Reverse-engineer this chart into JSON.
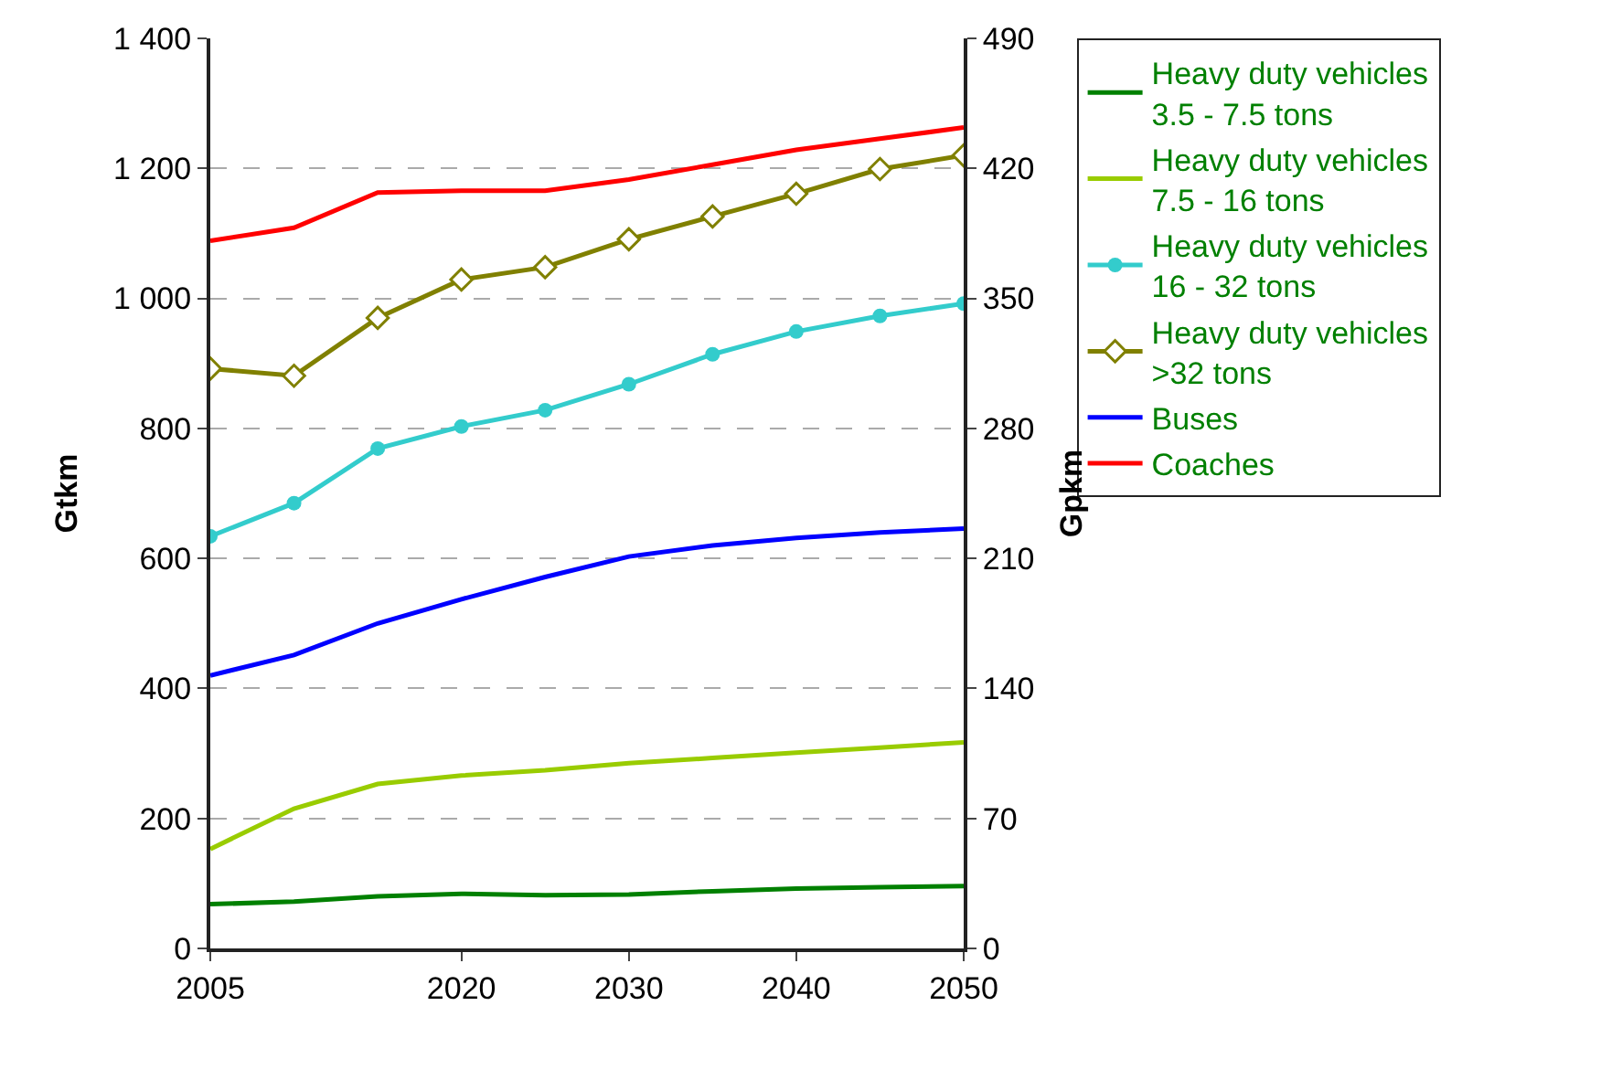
{
  "chart_data": {
    "type": "line",
    "xlabel": null,
    "ylabel": "Gtkm",
    "y2label": "Gpkm",
    "x": [
      2005,
      2010,
      2015,
      2020,
      2025,
      2030,
      2035,
      2040,
      2045,
      2050
    ],
    "xlim": [
      2005,
      2050
    ],
    "xticks": [
      2005,
      2020,
      2030,
      2040,
      2050
    ],
    "ylim": [
      0,
      1400
    ],
    "yticks": [
      0,
      200,
      400,
      600,
      800,
      {
        "value": 1000,
        "label": "1 000"
      },
      {
        "value": 1200,
        "label": "1 200"
      },
      {
        "value": 1400,
        "label": "1 400"
      }
    ],
    "y2lim": [
      0,
      490
    ],
    "y2ticks": [
      0,
      70,
      140,
      210,
      280,
      350,
      420,
      490
    ],
    "grid": "y",
    "legend": "right",
    "series": [
      {
        "name": "Heavy duty vehicles\n3.5 - 7.5 tons",
        "color": "#008000",
        "marker": "none",
        "values": [
          68,
          72,
          80,
          84,
          82,
          83,
          88,
          92,
          94,
          96
        ]
      },
      {
        "name": "Heavy duty vehicles\n7.5 - 16 tons",
        "color": "#99cc00",
        "marker": "none",
        "values": [
          153,
          215,
          253,
          266,
          274,
          285,
          293,
          301,
          309,
          317
        ]
      },
      {
        "name": "Heavy duty vehicles\n16 - 32 tons",
        "color": "#33cccc",
        "marker": "circle",
        "values": [
          634,
          685,
          769,
          803,
          828,
          868,
          914,
          949,
          973,
          992
        ]
      },
      {
        "name": "Heavy duty vehicles\n>32 tons",
        "color": "#808000",
        "marker": "diamond",
        "values": [
          892,
          881,
          970,
          1029,
          1048,
          1091,
          1126,
          1161,
          1199,
          1220
        ]
      },
      {
        "name": "Buses",
        "color": "#0000ff",
        "marker": "none",
        "axis": "y2",
        "values": [
          147,
          158,
          175,
          188,
          200,
          211,
          217,
          221,
          224,
          226
        ]
      },
      {
        "name": "Coaches",
        "color": "#ff0000",
        "marker": "none",
        "axis": "y2",
        "values": [
          381,
          388,
          407,
          408,
          408,
          414,
          422,
          430,
          436,
          442
        ]
      }
    ]
  }
}
